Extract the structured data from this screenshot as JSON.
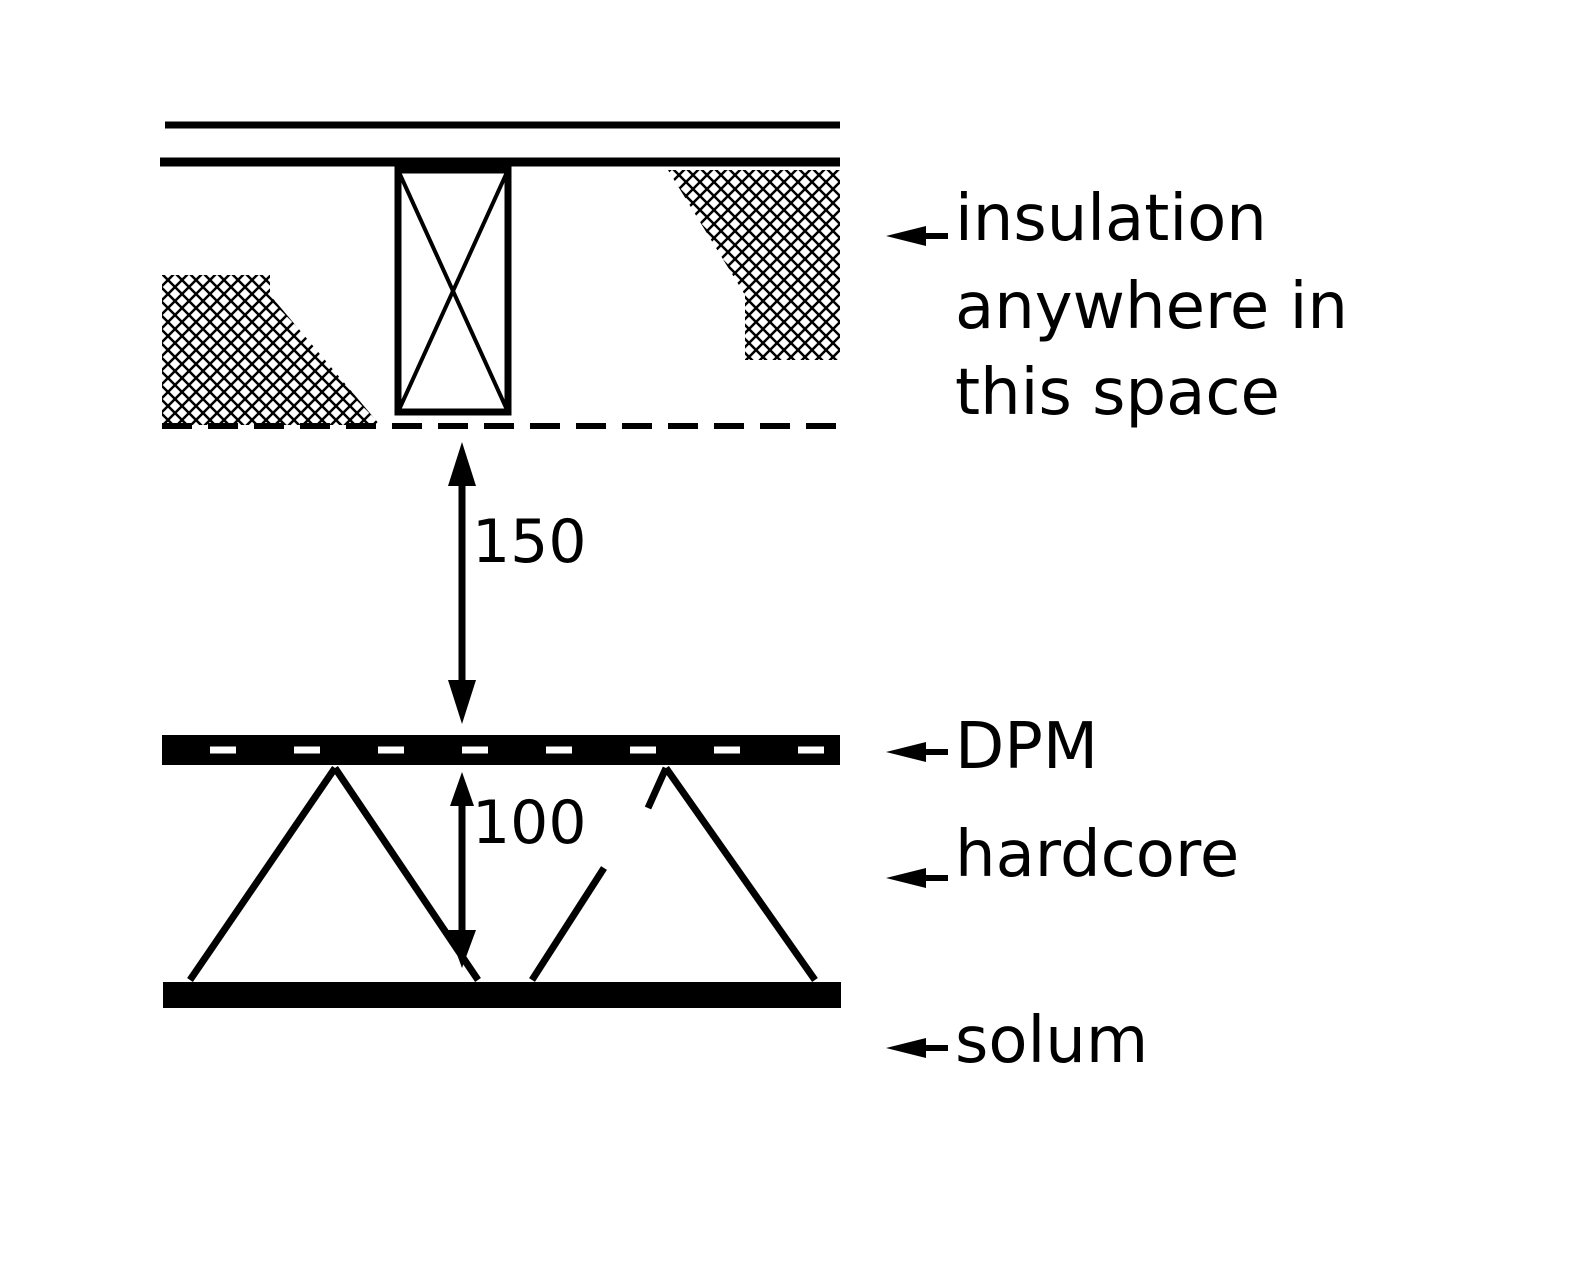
{
  "labels": {
    "insulation_line1": "insulation",
    "insulation_line2": "anywhere in",
    "insulation_line3": "this space",
    "dpm": "DPM",
    "hardcore": "hardcore",
    "solum": "solum"
  },
  "dimensions": {
    "upper_gap": "150",
    "lower_gap": "100"
  },
  "colors": {
    "ink": "#000000",
    "background": "#ffffff"
  },
  "icons": {
    "pointer": "left-arrow-icon",
    "dimension": "double-headed-arrow-icon"
  }
}
